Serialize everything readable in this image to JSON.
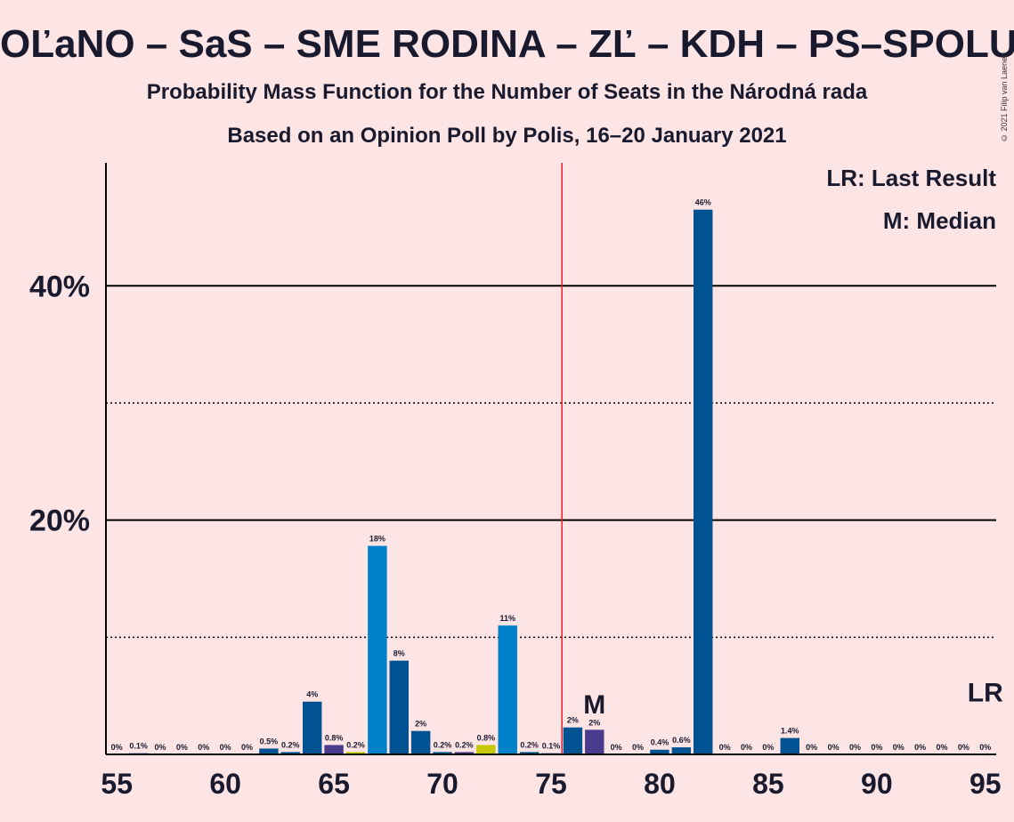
{
  "header": {
    "title": "OĽaNO – SaS – SME RODINA – ZĽ – KDH – PS–SPOLU",
    "subtitle1": "Probability Mass Function for the Number of Seats in the Národná rada",
    "subtitle2": "Based on an Opinion Poll by Polis, 16–20 January 2021",
    "copyright": "© 2021 Filip van Laenen"
  },
  "legend": {
    "last_result": "LR: Last Result",
    "median": "M: Median"
  },
  "colors": {
    "background": "#fde5e6",
    "majority_line": "#e8202a",
    "dark_blue": "#005293",
    "light_blue": "#0082ca",
    "purple": "#4b3b8f",
    "olive": "#c8c800",
    "axis": "#000000"
  },
  "chart_data": {
    "type": "bar",
    "x": [
      55,
      56,
      57,
      58,
      59,
      60,
      61,
      62,
      63,
      64,
      65,
      66,
      67,
      68,
      69,
      70,
      71,
      72,
      73,
      74,
      75,
      76,
      77,
      78,
      79,
      80,
      81,
      82,
      83,
      84,
      85,
      86,
      87,
      88,
      89,
      90,
      91,
      92,
      93,
      94,
      95
    ],
    "values": [
      0,
      0.1,
      0,
      0,
      0,
      0,
      0,
      0.5,
      0.2,
      4.5,
      0.8,
      0.2,
      17.8,
      8,
      2,
      0.2,
      0.2,
      0.8,
      11,
      0.2,
      0.1,
      2.3,
      2.1,
      0,
      0,
      0.4,
      0.6,
      46.5,
      0,
      0,
      0,
      1.4,
      0,
      0,
      0,
      0,
      0,
      0,
      0,
      0,
      0
    ],
    "labels": [
      "0%",
      "0.1%",
      "0%",
      "0%",
      "0%",
      "0%",
      "0%",
      "0.5%",
      "0.2%",
      "4%",
      "0.8%",
      "0.2%",
      "18%",
      "8%",
      "2%",
      "0.2%",
      "0.2%",
      "0.8%",
      "11%",
      "0.2%",
      "0.1%",
      "2%",
      "2%",
      "0%",
      "0%",
      "0.4%",
      "0.6%",
      "46%",
      "0%",
      "0%",
      "0%",
      "1.4%",
      "0%",
      "0%",
      "0%",
      "0%",
      "0%",
      "0%",
      "0%",
      "0%",
      "0%"
    ],
    "bar_colors": [
      "dark_blue",
      "dark_blue",
      "dark_blue",
      "dark_blue",
      "dark_blue",
      "dark_blue",
      "dark_blue",
      "dark_blue",
      "dark_blue",
      "dark_blue",
      "purple",
      "olive",
      "light_blue",
      "dark_blue",
      "dark_blue",
      "dark_blue",
      "purple",
      "olive",
      "light_blue",
      "dark_blue",
      "dark_blue",
      "dark_blue",
      "purple",
      "dark_blue",
      "dark_blue",
      "dark_blue",
      "dark_blue",
      "dark_blue",
      "dark_blue",
      "dark_blue",
      "dark_blue",
      "dark_blue",
      "dark_blue",
      "dark_blue",
      "dark_blue",
      "dark_blue",
      "dark_blue",
      "dark_blue",
      "dark_blue",
      "dark_blue",
      "dark_blue"
    ],
    "x_ticks": [
      55,
      60,
      65,
      70,
      75,
      80,
      85,
      90,
      95
    ],
    "y_ticks_labeled": [
      20,
      40
    ],
    "y_ticks_label_text": [
      "20%",
      "40%"
    ],
    "y_gridlines_dotted": [
      10,
      30
    ],
    "ylim": [
      0,
      50.5
    ],
    "xlim": [
      54.5,
      95.5
    ],
    "majority_line_x": 75.5,
    "median_x": 77,
    "median_label": "M",
    "last_result_x": 95,
    "last_result_label": "LR"
  }
}
